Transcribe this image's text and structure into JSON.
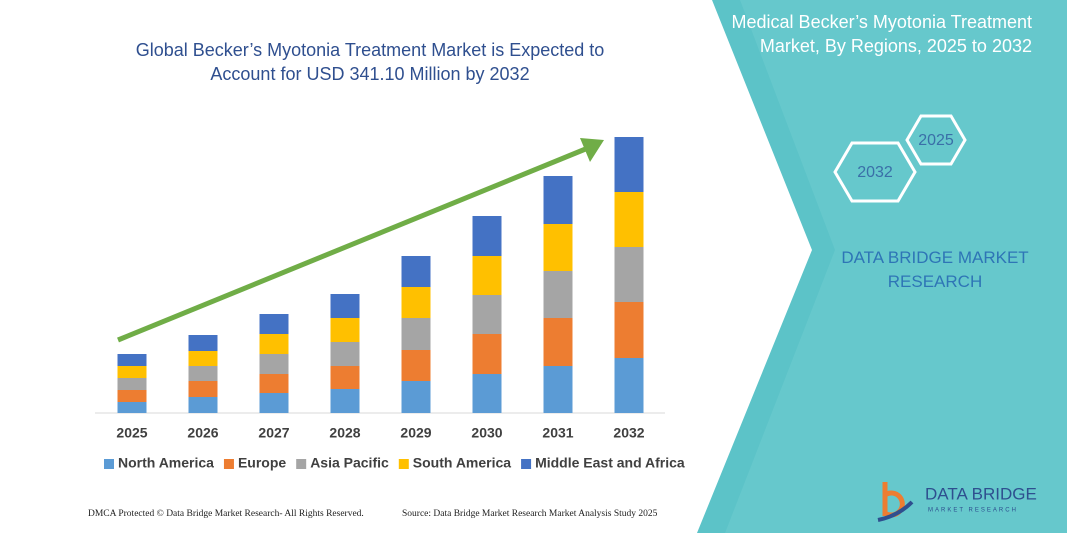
{
  "chart_data": {
    "type": "stacked_bar",
    "title": "Global Becker’s Myotonia Treatment Market is Expected to Account for USD 341.10 Million by 2032",
    "categories": [
      "2025",
      "2026",
      "2027",
      "2028",
      "2029",
      "2030",
      "2031",
      "2032"
    ],
    "series": [
      {
        "name": "North America",
        "color": "#5b9bd5",
        "values": [
          11,
          16,
          20,
          24,
          32,
          39,
          47,
          55
        ]
      },
      {
        "name": "Europe",
        "color": "#ed7d31",
        "values": [
          12,
          16,
          19,
          23,
          31,
          40,
          48,
          56
        ]
      },
      {
        "name": "Asia Pacific",
        "color": "#a5a5a5",
        "values": [
          12,
          15,
          20,
          24,
          32,
          39,
          47,
          55
        ]
      },
      {
        "name": "South America",
        "color": "#ffc000",
        "values": [
          12,
          15,
          20,
          24,
          31,
          39,
          47,
          55
        ]
      },
      {
        "name": "Middle East and Africa",
        "color": "#4472c4",
        "values": [
          12,
          16,
          20,
          24,
          31,
          40,
          48,
          55
        ]
      }
    ]
  },
  "side_panel": {
    "title": "Medical Becker’s Myotonia Treatment Market, By Regions, 2025 to 2032",
    "hexagons": [
      "2025",
      "2032"
    ],
    "brand": "DATA BRIDGE MARKET RESEARCH"
  },
  "logo": {
    "name": "DATA BRIDGE",
    "tagline": "MARKET RESEARCH"
  },
  "footer": {
    "left": "DMCA Protected © Data Bridge Market Research- All Rights Reserved.",
    "right": "Source: Data Bridge Market Research Market Analysis Study 2025"
  }
}
